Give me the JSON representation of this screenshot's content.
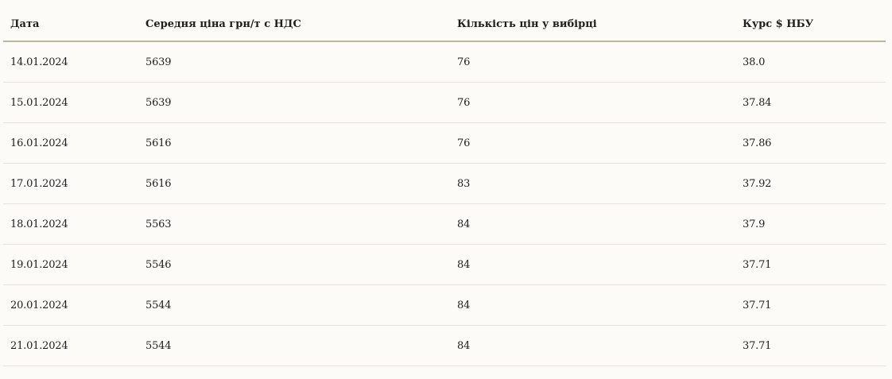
{
  "table": {
    "header": [
      "Дата",
      "Середня ціна грн/т с НДС",
      "Кількість цін у вибірці",
      "Курс $ НБУ"
    ],
    "rows": [
      [
        "14.01.2024",
        "5639",
        "76",
        "38.0"
      ],
      [
        "15.01.2024",
        "5639",
        "76",
        "37.84"
      ],
      [
        "16.01.2024",
        "5616",
        "76",
        "37.86"
      ],
      [
        "17.01.2024",
        "5616",
        "83",
        "37.92"
      ],
      [
        "18.01.2024",
        "5563",
        "84",
        "37.9"
      ],
      [
        "19.01.2024",
        "5546",
        "84",
        "37.71"
      ],
      [
        "20.01.2024",
        "5544",
        "84",
        "37.71"
      ],
      [
        "21.01.2024",
        "5544",
        "84",
        "37.71"
      ]
    ]
  }
}
